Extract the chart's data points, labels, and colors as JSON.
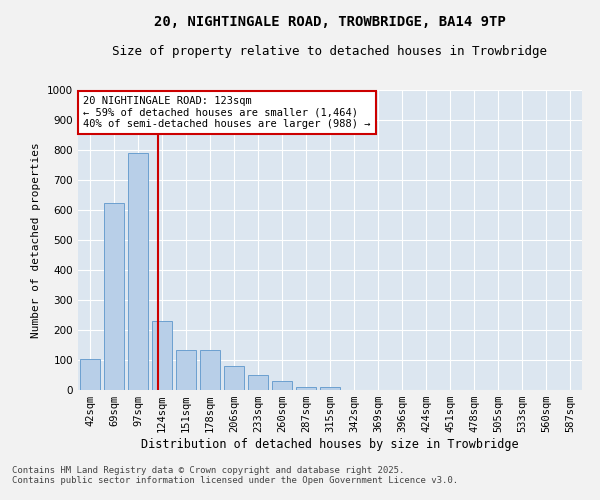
{
  "title1": "20, NIGHTINGALE ROAD, TROWBRIDGE, BA14 9TP",
  "title2": "Size of property relative to detached houses in Trowbridge",
  "xlabel": "Distribution of detached houses by size in Trowbridge",
  "ylabel": "Number of detached properties",
  "categories": [
    "42sqm",
    "69sqm",
    "97sqm",
    "124sqm",
    "151sqm",
    "178sqm",
    "206sqm",
    "233sqm",
    "260sqm",
    "287sqm",
    "315sqm",
    "342sqm",
    "369sqm",
    "396sqm",
    "424sqm",
    "451sqm",
    "478sqm",
    "505sqm",
    "533sqm",
    "560sqm",
    "587sqm"
  ],
  "values": [
    105,
    625,
    790,
    230,
    135,
    135,
    80,
    50,
    30,
    10,
    10,
    0,
    0,
    0,
    0,
    0,
    0,
    0,
    0,
    0,
    0
  ],
  "bar_color": "#b8cfe8",
  "bar_edge_color": "#6ca0d0",
  "bar_width": 0.85,
  "vline_x": 2.85,
  "vline_color": "#cc0000",
  "annotation_text": "20 NIGHTINGALE ROAD: 123sqm\n← 59% of detached houses are smaller (1,464)\n40% of semi-detached houses are larger (988) →",
  "annotation_box_color": "#ffffff",
  "annotation_edge_color": "#cc0000",
  "background_color": "#dce6f0",
  "fig_background_color": "#f2f2f2",
  "ylim": [
    0,
    1000
  ],
  "yticks": [
    0,
    100,
    200,
    300,
    400,
    500,
    600,
    700,
    800,
    900,
    1000
  ],
  "footer_line1": "Contains HM Land Registry data © Crown copyright and database right 2025.",
  "footer_line2": "Contains public sector information licensed under the Open Government Licence v3.0.",
  "title1_fontsize": 10,
  "title2_fontsize": 9,
  "xlabel_fontsize": 8.5,
  "ylabel_fontsize": 8,
  "tick_fontsize": 7.5,
  "annotation_fontsize": 7.5,
  "footer_fontsize": 6.5
}
